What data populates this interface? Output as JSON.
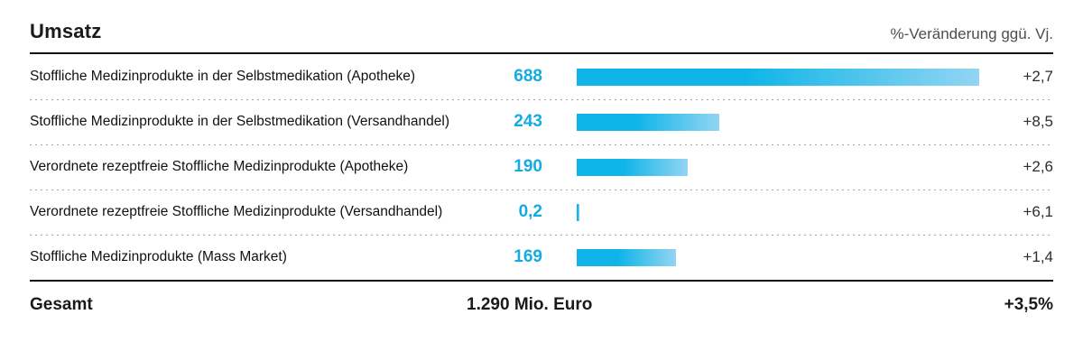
{
  "header": {
    "title": "Umsatz",
    "right_label": "%-Veränderung ggü. Vj."
  },
  "chart_data": {
    "type": "bar",
    "orientation": "horizontal",
    "title": "Umsatz",
    "xlabel": "",
    "ylabel": "",
    "value_unit": "Mio. Euro",
    "change_column_label": "%-Veränderung ggü. Vj.",
    "categories": [
      "Stoffliche Medizinprodukte in der Selbstmedikation (Apotheke)",
      "Stoffliche Medizinprodukte in der Selbstmedikation (Versandhandel)",
      "Verordnete rezeptfreie Stoffliche Medizinprodukte (Apotheke)",
      "Verordnete rezeptfreie Stoffliche Medizinprodukte (Versandhandel)",
      "Stoffliche Medizinprodukte (Mass Market)"
    ],
    "values": [
      688,
      243,
      190,
      0.2,
      169
    ],
    "changes_pct": [
      2.7,
      8.5,
      2.6,
      6.1,
      1.4
    ],
    "xlim": [
      0,
      688
    ],
    "grid": false,
    "legend": false,
    "total": {
      "label": "Gesamt",
      "value": 1290,
      "value_text": "1.290 Mio. Euro",
      "change_pct": 3.5
    },
    "bar_color_start": "#0fb5e8",
    "bar_color_end": "#92d5f3"
  },
  "rows": [
    {
      "label": "Stoffliche Medizinprodukte in der Selbstmedikation (Apotheke)",
      "value": "688",
      "change": "+2,7"
    },
    {
      "label": "Stoffliche Medizinprodukte in der Selbstmedikation (Versandhandel)",
      "value": "243",
      "change": "+8,5"
    },
    {
      "label": "Verordnete rezeptfreie Stoffliche Medizinprodukte (Apotheke)",
      "value": "190",
      "change": "+2,6"
    },
    {
      "label": "Verordnete rezeptfreie Stoffliche Medizinprodukte (Versandhandel)",
      "value": "0,2",
      "change": "+6,1"
    },
    {
      "label": "Stoffliche Medizinprodukte (Mass Market)",
      "value": "169",
      "change": "+1,4"
    }
  ],
  "footer": {
    "label": "Gesamt",
    "total": "1.290 Mio. Euro",
    "change": "+3,5%"
  },
  "colors": {
    "accent_cyan": "#14abe3",
    "bar_gradient_start": "#0fb5e8",
    "bar_gradient_end": "#92d5f3",
    "rule_black": "#111111",
    "header_gray": "#4d4d4d",
    "dotted_separator": "#a8a8a8"
  }
}
